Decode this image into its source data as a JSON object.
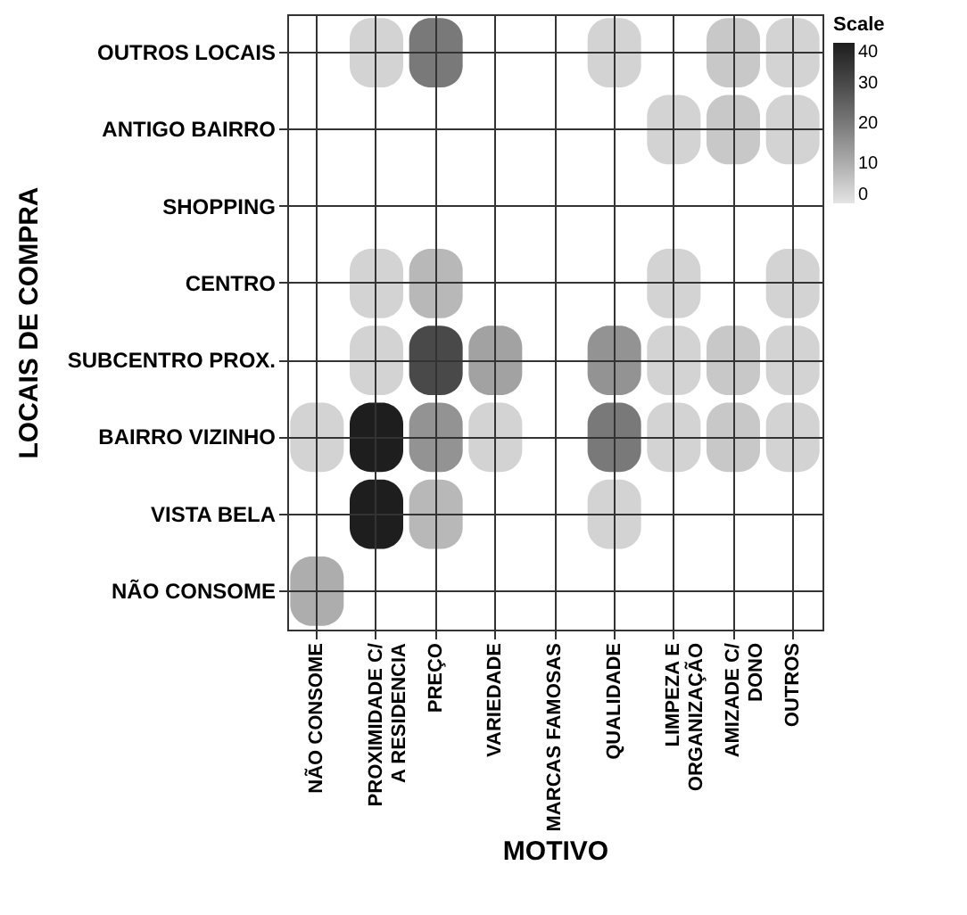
{
  "chart_data": {
    "type": "heatmap",
    "xlabel": "MOTIVO",
    "ylabel": "LOCAIS DE COMPRA",
    "legend_title": "Scale",
    "categories": [
      "NÃO CONSOME",
      "PROXIMIDADE C/ A RESIDENCIA",
      "PREÇO",
      "VARIEDADE",
      "MARCAS FAMOSAS",
      "QUALIDADE",
      "LIMPEZA E ORGANIZAÇÃO",
      "AMIZADE C/ DONO",
      "OUTROS"
    ],
    "y_categories": [
      "OUTROS LOCAIS",
      "ANTIGO BAIRRO",
      "SHOPPING",
      "CENTRO",
      "SUBCENTRO PROX.",
      "BAIRRO VIZINHO",
      "VISTA BELA",
      "NÃO CONSOME"
    ],
    "cells": [
      [
        null,
        3,
        20,
        null,
        null,
        3,
        null,
        5,
        3
      ],
      [
        null,
        null,
        null,
        null,
        null,
        null,
        3,
        5,
        3
      ],
      [
        null,
        null,
        null,
        null,
        null,
        null,
        null,
        null,
        null
      ],
      [
        null,
        3,
        8,
        null,
        null,
        null,
        3,
        null,
        3
      ],
      [
        null,
        3,
        30,
        12,
        null,
        15,
        3,
        5,
        3
      ],
      [
        3,
        40,
        15,
        3,
        null,
        20,
        3,
        5,
        3
      ],
      [
        null,
        40,
        8,
        null,
        null,
        3,
        null,
        null,
        null
      ],
      [
        10,
        null,
        null,
        null,
        null,
        null,
        null,
        null,
        null
      ]
    ],
    "clim": [
      0,
      40
    ],
    "cticks": [
      0,
      10,
      20,
      30,
      40
    ],
    "grid": true
  }
}
